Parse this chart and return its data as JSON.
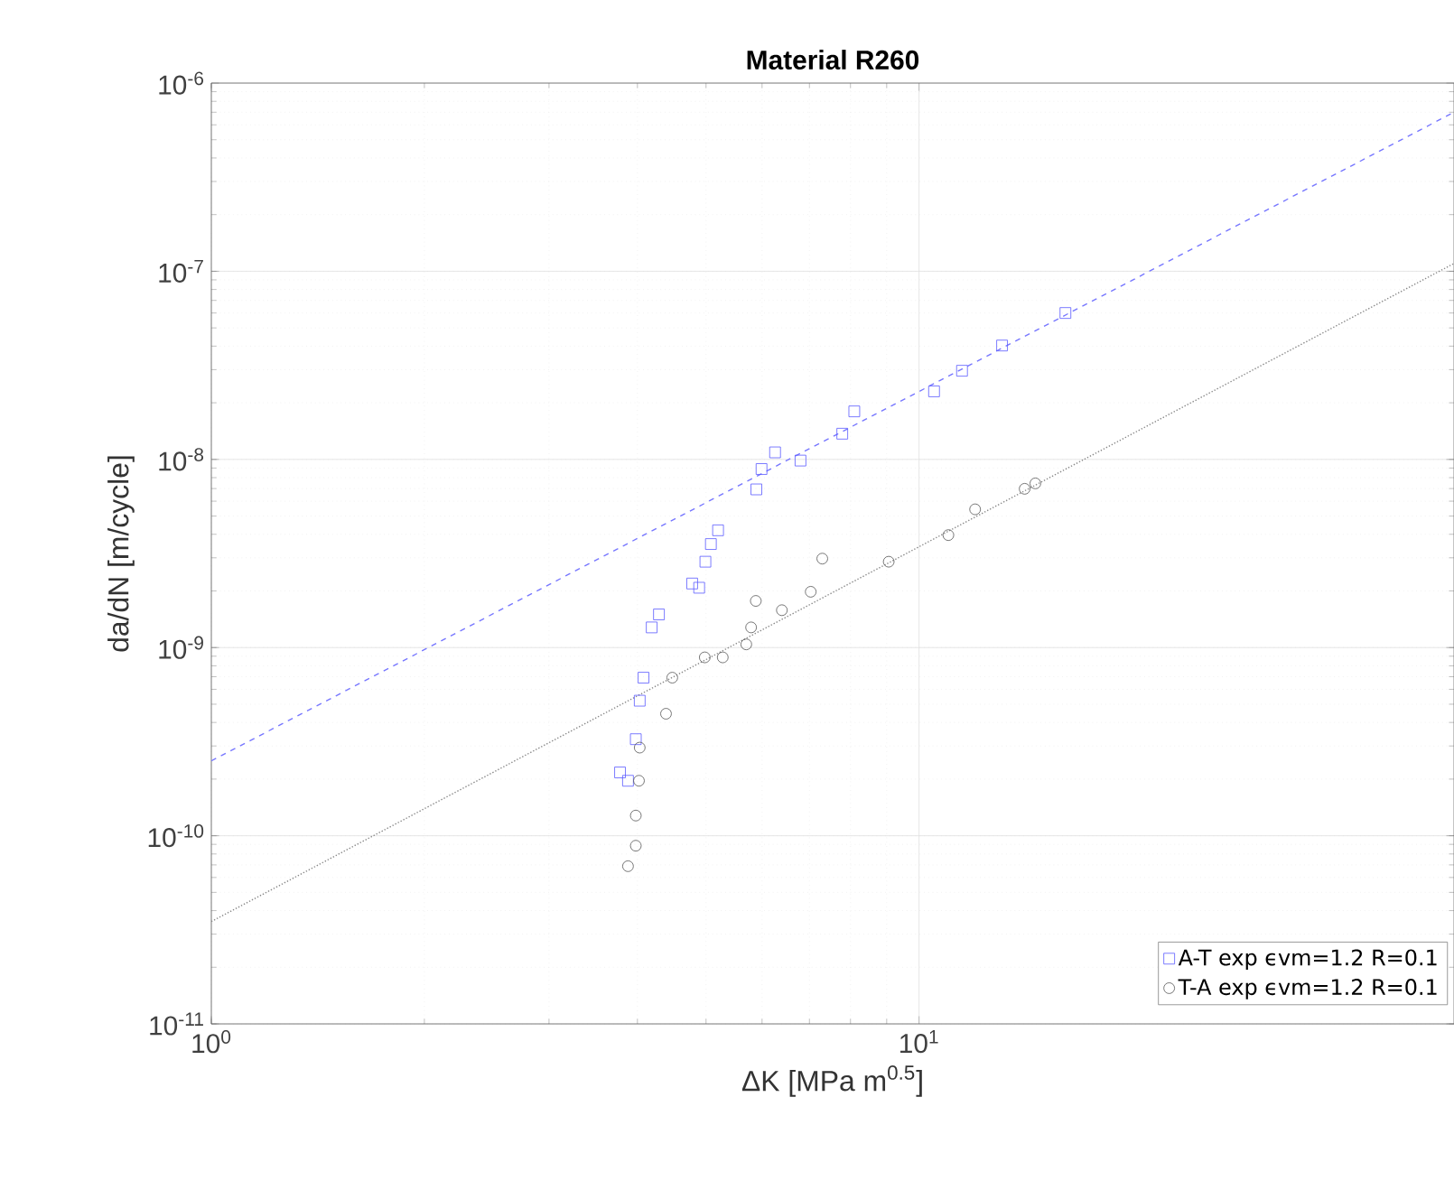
{
  "chart_data": {
    "type": "scatter",
    "title": "Material R260",
    "xlabel": "ΔK [MPa m$^{0.5}$]",
    "ylabel": "da/dN [m/cycle]",
    "log": "xy",
    "grid": true,
    "legend": "bottom right",
    "xlim": [
      1,
      57
    ],
    "ylim": [
      1e-11,
      1e-06
    ],
    "xticks": [
      {
        "value": 1,
        "label": "10$^{0}$"
      },
      {
        "value": 10,
        "label": "10$^{1}$"
      }
    ],
    "yticks": [
      {
        "value": 1e-11,
        "label": "10$^{-11}$"
      },
      {
        "value": 1e-10,
        "label": "10$^{-10}$"
      },
      {
        "value": 1e-09,
        "label": "10$^{-9}$"
      },
      {
        "value": 1e-08,
        "label": "10$^{-8}$"
      },
      {
        "value": 1e-07,
        "label": "10$^{-7}$"
      },
      {
        "value": 1e-06,
        "label": "10$^{-6}$"
      }
    ],
    "series": [
      {
        "name": "A-T exp ϵvm=1.2 R=0.1",
        "marker": "square",
        "color": "#5a5aff",
        "x": [
          3.78,
          3.88,
          3.98,
          4.03,
          4.08,
          4.19,
          4.29,
          4.78,
          4.89,
          4.99,
          5.08,
          5.2,
          5.89,
          5.99,
          6.26,
          6.8,
          7.79,
          8.1,
          10.5,
          11.5,
          13.1,
          16.1
        ],
        "values": [
          2.17e-10,
          1.96e-10,
          3.26e-10,
          5.22e-10,
          6.92e-10,
          1.28e-09,
          1.5e-09,
          2.19e-09,
          2.08e-09,
          2.86e-09,
          3.55e-09,
          4.2e-09,
          6.93e-09,
          8.89e-09,
          1.09e-08,
          9.86e-09,
          1.37e-08,
          1.8e-08,
          2.3e-08,
          2.96e-08,
          4.03e-08,
          6e-08
        ]
      },
      {
        "name": "T-A exp ϵvm=1.2 R=0.1",
        "marker": "circle",
        "color": "#555555",
        "x": [
          3.88,
          3.98,
          3.98,
          4.02,
          4.03,
          4.39,
          4.48,
          4.98,
          5.28,
          5.7,
          5.79,
          5.88,
          6.4,
          7.03,
          7.3,
          9.06,
          11.0,
          12.0,
          14.1,
          14.6
        ],
        "values": [
          6.89e-11,
          8.85e-11,
          1.28e-10,
          1.96e-10,
          2.94e-10,
          4.45e-10,
          6.92e-10,
          8.87e-10,
          8.87e-10,
          1.04e-09,
          1.28e-09,
          1.77e-09,
          1.58e-09,
          1.98e-09,
          2.97e-09,
          2.86e-09,
          3.96e-09,
          5.43e-09,
          6.98e-09,
          7.46e-09
        ]
      },
      {
        "type": "line",
        "line_style": "dashed",
        "marker": "none",
        "color": "#7777ff",
        "x": [
          1,
          57
        ],
        "values": [
          2.5e-10,
          7e-07
        ]
      },
      {
        "type": "line",
        "line_style": "dotted",
        "marker": "none",
        "color": "#888888",
        "x": [
          1,
          57
        ],
        "values": [
          3.5e-11,
          1.1e-07
        ]
      }
    ]
  }
}
